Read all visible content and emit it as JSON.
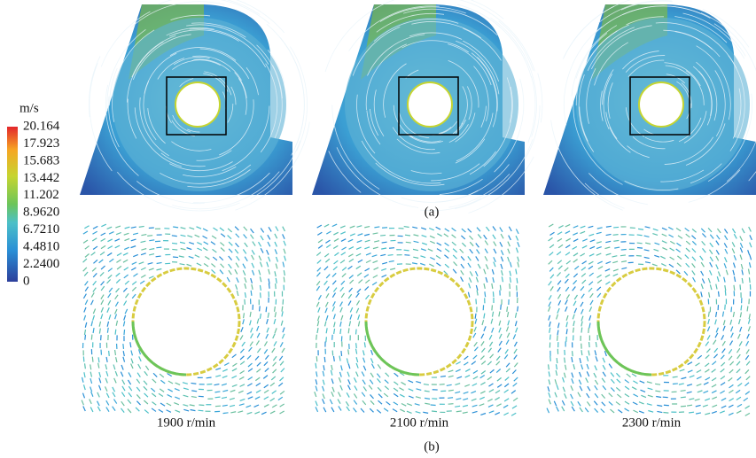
{
  "colorbar": {
    "unit": "m/s",
    "labels": [
      "20.164",
      "17.923",
      "15.683",
      "13.442",
      "11.202",
      "8.9620",
      "6.7210",
      "4.4810",
      "2.2400",
      "0"
    ]
  },
  "panel_a": {
    "caption": "(a)"
  },
  "panel_b": {
    "caption": "(b)",
    "labels": [
      "1900 r/min",
      "2100 r/min",
      "2300 r/min"
    ]
  }
}
